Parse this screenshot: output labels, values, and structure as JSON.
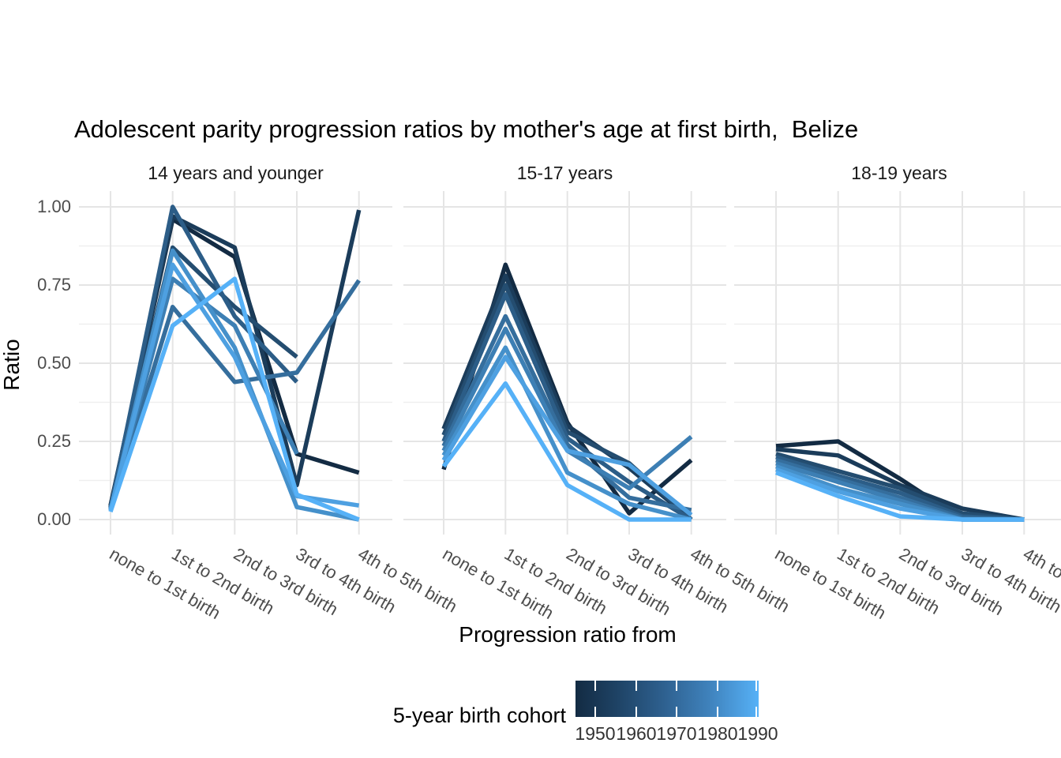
{
  "title": "Adolescent parity progression ratios by mother's age at first birth,  Belize",
  "y_axis": {
    "title": "Ratio",
    "ticks": [
      "0.00",
      "0.25",
      "0.50",
      "0.75",
      "1.00"
    ]
  },
  "x_axis": {
    "title": "Progression ratio from"
  },
  "legend": {
    "title": "5-year birth cohort",
    "ticks": [
      "1950",
      "1960",
      "1970",
      "1980",
      "1990"
    ],
    "color_start": "#132B43",
    "color_end": "#56B1F7"
  },
  "chart_data": {
    "type": "line",
    "title": "Adolescent parity progression ratios by mother's age at first birth,  Belize",
    "xlabel": "Progression ratio from",
    "ylabel": "Ratio",
    "ylim": [
      0,
      1
    ],
    "y_major_ticks": [
      0,
      0.25,
      0.5,
      0.75,
      1
    ],
    "y_minor_ticks": [
      0.125,
      0.375,
      0.625,
      0.875
    ],
    "grid": "major+minor",
    "legend_position": "bottom",
    "color_scale": {
      "name": "5-year birth cohort",
      "type": "continuous-gradient",
      "domain": [
        1950,
        1990
      ],
      "from": "#132B43",
      "to": "#56B1F7"
    },
    "categories": [
      "none to 1st birth",
      "1st to 2nd birth",
      "2nd to 3rd birth",
      "3rd to 4th birth",
      "4th to 5th birth"
    ],
    "facets": [
      {
        "label": "14 years and younger",
        "series": [
          {
            "name": "1950",
            "color": "#132B43",
            "values": [
              0.045,
              0.96,
              0.84,
              0.21,
              0.15
            ]
          },
          {
            "name": "1955",
            "color": "#1B3C5A",
            "values": [
              0.04,
              0.97,
              0.87,
              0.11,
              0.99
            ]
          },
          {
            "name": "1960",
            "color": "#244D70",
            "values": [
              0.04,
              0.87,
              0.68,
              0.52,
              null
            ]
          },
          {
            "name": "1965",
            "color": "#2C5D87",
            "values": [
              0.035,
              1.0,
              0.65,
              0.44,
              null
            ]
          },
          {
            "name": "1970",
            "color": "#356E9D",
            "values": [
              0.035,
              0.68,
              0.44,
              0.47,
              0.765
            ]
          },
          {
            "name": "1975",
            "color": "#3D7FB4",
            "values": [
              0.03,
              0.77,
              0.62,
              0.21,
              null
            ]
          },
          {
            "name": "1980",
            "color": "#4590CA",
            "values": [
              0.03,
              0.86,
              0.55,
              0.04,
              0.0
            ]
          },
          {
            "name": "1985",
            "color": "#4EA0E1",
            "values": [
              0.03,
              0.815,
              0.52,
              0.075,
              0.045
            ]
          },
          {
            "name": "1990",
            "color": "#56B1F7",
            "values": [
              0.025,
              0.62,
              0.77,
              0.08,
              0.0
            ]
          }
        ]
      },
      {
        "label": "15-17 years",
        "series": [
          {
            "name": "1950",
            "color": "#132B43",
            "values": [
              0.16,
              0.815,
              0.31,
              0.02,
              0.19
            ]
          },
          {
            "name": "1955",
            "color": "#1B3C5A",
            "values": [
              0.29,
              0.78,
              0.3,
              0.165,
              0.0
            ]
          },
          {
            "name": "1960",
            "color": "#244D70",
            "values": [
              0.27,
              0.75,
              0.28,
              0.18,
              0.0
            ]
          },
          {
            "name": "1965",
            "color": "#2C5D87",
            "values": [
              0.25,
              0.72,
              0.26,
              0.12,
              0.0
            ]
          },
          {
            "name": "1970",
            "color": "#356E9D",
            "values": [
              0.235,
              0.65,
              0.24,
              0.07,
              0.03
            ]
          },
          {
            "name": "1975",
            "color": "#3D7FB4",
            "values": [
              0.22,
              0.61,
              0.22,
              0.1,
              0.265
            ]
          },
          {
            "name": "1980",
            "color": "#4590CA",
            "values": [
              0.205,
              0.55,
              0.15,
              0.05,
              0.0
            ]
          },
          {
            "name": "1985",
            "color": "#4EA0E1",
            "values": [
              0.19,
              0.52,
              0.22,
              0.175,
              0.015
            ]
          },
          {
            "name": "1990",
            "color": "#56B1F7",
            "values": [
              0.17,
              0.435,
              0.11,
              0.0,
              0.0
            ]
          }
        ]
      },
      {
        "label": "18-19 years",
        "series": [
          {
            "name": "1950",
            "color": "#132B43",
            "values": [
              0.235,
              0.25,
              0.13,
              0.0,
              null
            ]
          },
          {
            "name": "1955",
            "color": "#1B3C5A",
            "values": [
              0.225,
              0.205,
              0.11,
              0.035,
              0.0
            ]
          },
          {
            "name": "1960",
            "color": "#244D70",
            "values": [
              0.21,
              0.155,
              0.1,
              0.02,
              0.0
            ]
          },
          {
            "name": "1965",
            "color": "#2C5D87",
            "values": [
              0.2,
              0.14,
              0.085,
              0.01,
              0.0
            ]
          },
          {
            "name": "1970",
            "color": "#356E9D",
            "values": [
              0.19,
              0.13,
              0.07,
              0.005,
              0.0
            ]
          },
          {
            "name": "1975",
            "color": "#3D7FB4",
            "values": [
              0.18,
              0.12,
              0.06,
              0.0,
              0.0
            ]
          },
          {
            "name": "1980",
            "color": "#4590CA",
            "values": [
              0.17,
              0.1,
              0.05,
              0.0,
              0.0
            ]
          },
          {
            "name": "1985",
            "color": "#4EA0E1",
            "values": [
              0.16,
              0.09,
              0.035,
              0.0,
              0.0
            ]
          },
          {
            "name": "1990",
            "color": "#56B1F7",
            "values": [
              0.15,
              0.075,
              0.01,
              0.0,
              0.0
            ]
          }
        ]
      }
    ]
  }
}
